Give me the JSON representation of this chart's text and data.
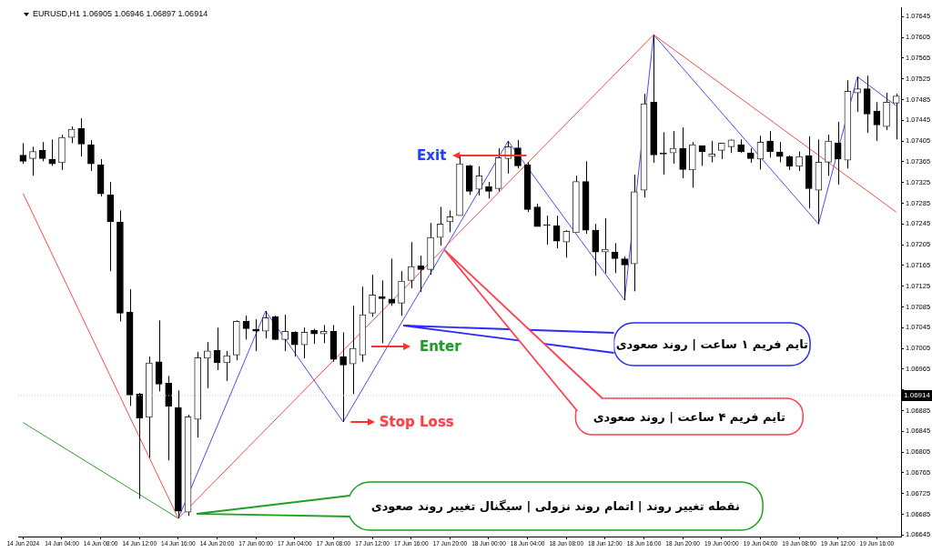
{
  "chart_data": {
    "type": "candlestick",
    "title": "EURUSD,H1  1.06905 1.06946 1.06897 1.06914",
    "categories": [
      "14 Jun 2024",
      null,
      null,
      null,
      "14 Jun 04:00",
      null,
      null,
      null,
      "14 Jun 08:00",
      null,
      null,
      null,
      "14 Jun 12:00",
      null,
      null,
      null,
      "14 Jun 16:00",
      null,
      null,
      null,
      "14 Jun 20:00",
      null,
      null,
      null,
      "17 Jun 00:00",
      null,
      null,
      null,
      "17 Jun 04:00",
      null,
      null,
      null,
      "17 Jun 08:00",
      null,
      null,
      null,
      "17 Jun 12:00",
      null,
      null,
      null,
      "17 Jun 16:00",
      null,
      null,
      null,
      "17 Jun 20:00",
      null,
      null,
      null,
      "18 Jun 00:00",
      null,
      null,
      null,
      "18 Jun 04:00",
      null,
      null,
      null,
      "18 Jun 08:00",
      null,
      null,
      null,
      "18 Jun 12:00",
      null,
      null,
      null,
      "18 Jun 16:00",
      null,
      null,
      null,
      "18 Jun 20:00",
      null,
      null,
      null,
      "19 Jun 00:00",
      null,
      null,
      null,
      "19 Jun 04:00",
      null,
      null,
      null,
      "19 Jun 08:00",
      null,
      null,
      null,
      "19 Jun 12:00",
      null,
      null,
      null,
      "19 Jun 16:00",
      null,
      null
    ],
    "ohlc": [
      [
        1.07378,
        1.07401,
        1.07361,
        1.07366
      ],
      [
        1.07371,
        1.07394,
        1.07338,
        1.07385
      ],
      [
        1.07387,
        1.07403,
        1.07366,
        1.07371
      ],
      [
        1.0737,
        1.07408,
        1.07357,
        1.07361
      ],
      [
        1.07363,
        1.07417,
        1.07349,
        1.07412
      ],
      [
        1.07412,
        1.07433,
        1.07401,
        1.07428
      ],
      [
        1.07429,
        1.07449,
        1.07375,
        1.07399
      ],
      [
        1.07398,
        1.07407,
        1.07347,
        1.07361
      ],
      [
        1.07359,
        1.0737,
        1.07298,
        1.07303
      ],
      [
        1.07301,
        1.07326,
        1.07154,
        1.07249
      ],
      [
        1.07249,
        1.07271,
        1.07057,
        1.07073
      ],
      [
        1.07075,
        1.07119,
        1.06894,
        1.06915
      ],
      [
        1.06917,
        1.06919,
        1.06715,
        1.0687
      ],
      [
        1.06872,
        1.06989,
        1.06794,
        1.06977
      ],
      [
        1.06979,
        1.07059,
        1.06922,
        1.06936
      ],
      [
        1.06938,
        1.06952,
        1.06789,
        1.06893
      ],
      [
        1.06891,
        1.06924,
        1.06677,
        1.06691
      ],
      [
        1.06689,
        1.06877,
        1.06682,
        1.06873
      ],
      [
        1.06868,
        1.06998,
        1.06833,
        1.06987
      ],
      [
        1.06986,
        1.07017,
        1.06928,
        1.07
      ],
      [
        1.07001,
        1.07045,
        1.06963,
        1.06977
      ],
      [
        1.06977,
        1.07,
        1.06942,
        1.06991
      ],
      [
        1.06992,
        1.07059,
        1.06982,
        1.07057
      ],
      [
        1.07057,
        1.07068,
        1.07022,
        1.07043
      ],
      [
        1.07042,
        1.07061,
        1.07,
        1.07038
      ],
      [
        1.07038,
        1.07077,
        1.07024,
        1.07064
      ],
      [
        1.07066,
        1.07068,
        1.07021,
        1.07022
      ],
      [
        1.07022,
        1.0707,
        1.07,
        1.07038
      ],
      [
        1.07036,
        1.07038,
        1.06989,
        1.07012
      ],
      [
        1.07012,
        1.07045,
        1.06986,
        1.07036
      ],
      [
        1.0704,
        1.07043,
        1.07014,
        1.07033
      ],
      [
        1.07033,
        1.0705,
        1.07015,
        1.07038
      ],
      [
        1.07038,
        1.0705,
        1.06979,
        1.06984
      ],
      [
        1.06989,
        1.07036,
        1.06863,
        1.06973
      ],
      [
        1.06975,
        1.07087,
        1.06917,
        1.07005
      ],
      [
        1.06992,
        1.07124,
        1.06979,
        1.0707
      ],
      [
        1.07073,
        1.07147,
        1.07066,
        1.07108
      ],
      [
        1.07105,
        1.07136,
        1.07015,
        1.07101
      ],
      [
        1.071,
        1.07178,
        1.07087,
        1.07092
      ],
      [
        1.07092,
        1.07154,
        1.07068,
        1.07135
      ],
      [
        1.07136,
        1.0721,
        1.07121,
        1.07163
      ],
      [
        1.07164,
        1.07184,
        1.07114,
        1.07157
      ],
      [
        1.07157,
        1.07247,
        1.07147,
        1.07219
      ],
      [
        1.07219,
        1.07278,
        1.07203,
        1.07245
      ],
      [
        1.07249,
        1.07271,
        1.07229,
        1.07259
      ],
      [
        1.07261,
        1.07375,
        1.07261,
        1.07361
      ],
      [
        1.07357,
        1.07359,
        1.07301,
        1.07308
      ],
      [
        1.07312,
        1.07356,
        1.073,
        1.07338
      ],
      [
        1.07317,
        1.07326,
        1.07294,
        1.07308
      ],
      [
        1.07313,
        1.07391,
        1.07308,
        1.07373
      ],
      [
        1.07371,
        1.07405,
        1.07342,
        1.07394
      ],
      [
        1.07392,
        1.07407,
        1.07352,
        1.07357
      ],
      [
        1.07359,
        1.07364,
        1.07268,
        1.07273
      ],
      [
        1.07278,
        1.07284,
        1.0724,
        1.0724
      ],
      [
        1.07243,
        1.07261,
        1.07205,
        1.07242
      ],
      [
        1.07242,
        1.07261,
        1.07198,
        1.07212
      ],
      [
        1.0721,
        1.07233,
        1.0718,
        1.07231
      ],
      [
        1.07228,
        1.07338,
        1.07228,
        1.07327
      ],
      [
        1.07327,
        1.07366,
        1.07226,
        1.07233
      ],
      [
        1.07233,
        1.07245,
        1.07145,
        1.07191
      ],
      [
        1.07191,
        1.07256,
        1.0715,
        1.07196
      ],
      [
        1.07191,
        1.07208,
        1.0715,
        1.07178
      ],
      [
        1.07178,
        1.07182,
        1.07098,
        1.07166
      ],
      [
        1.07168,
        1.0734,
        1.07115,
        1.07307
      ],
      [
        1.0731,
        1.07496,
        1.07296,
        1.07477
      ],
      [
        1.0748,
        1.0761,
        1.07363,
        1.07378
      ],
      [
        1.07382,
        1.07422,
        1.0734,
        1.0738
      ],
      [
        1.07382,
        1.07424,
        1.07361,
        1.07391
      ],
      [
        1.07391,
        1.07431,
        1.07333,
        1.0735
      ],
      [
        1.07349,
        1.07403,
        1.07315,
        1.07398
      ],
      [
        1.07396,
        1.07396,
        1.07357,
        1.07384
      ],
      [
        1.07375,
        1.07405,
        1.07364,
        1.0738
      ],
      [
        1.07387,
        1.07401,
        1.0737,
        1.07401
      ],
      [
        1.07394,
        1.07408,
        1.07382,
        1.07407
      ],
      [
        1.07398,
        1.07408,
        1.07382,
        1.07384
      ],
      [
        1.07382,
        1.07391,
        1.07363,
        1.07371
      ],
      [
        1.0737,
        1.07415,
        1.0735,
        1.07403
      ],
      [
        1.07405,
        1.07424,
        1.07373,
        1.07384
      ],
      [
        1.07384,
        1.07403,
        1.07364,
        1.07375
      ],
      [
        1.07375,
        1.07377,
        1.07349,
        1.07356
      ],
      [
        1.07356,
        1.07385,
        1.07347,
        1.07375
      ],
      [
        1.07377,
        1.07414,
        1.07275,
        1.07313
      ],
      [
        1.0731,
        1.07408,
        1.07245,
        1.07364
      ],
      [
        1.07364,
        1.07417,
        1.07338,
        1.07405
      ],
      [
        1.07401,
        1.07442,
        1.07321,
        1.0737
      ],
      [
        1.07368,
        1.07522,
        1.07352,
        1.07501
      ],
      [
        1.07498,
        1.07529,
        1.07461,
        1.07506
      ],
      [
        1.07506,
        1.07531,
        1.07421,
        1.07457
      ],
      [
        1.07463,
        1.0748,
        1.07405,
        1.07436
      ],
      [
        1.07433,
        1.07498,
        1.07426,
        1.0748
      ],
      [
        1.07478,
        1.07496,
        1.07408,
        1.07492
      ]
    ],
    "series": [
      {
        "type": "line",
        "color": "#ff4a4a",
        "values": [
          1.07304,
          null,
          null,
          null,
          null,
          null,
          null,
          null,
          null,
          null,
          null,
          null,
          null,
          null,
          null,
          null,
          1.06677,
          null,
          null,
          null,
          null,
          null,
          null,
          null,
          null,
          null,
          null,
          null,
          null,
          null,
          null,
          null,
          null,
          null,
          null,
          null,
          null,
          null,
          null,
          null,
          null,
          null,
          null,
          null,
          null,
          null,
          null,
          null,
          null,
          null,
          null,
          null,
          null,
          null,
          null,
          null,
          null,
          null,
          null,
          null,
          null,
          null,
          null,
          null,
          null,
          1.0761,
          null,
          null,
          null,
          null,
          null,
          null,
          null,
          null,
          null,
          null,
          null,
          null,
          null,
          null,
          null,
          null,
          null,
          null,
          null,
          null,
          null,
          null,
          null,
          null,
          1.07268
        ]
      },
      {
        "type": "line",
        "color": "#4a4aff",
        "values": [
          null,
          null,
          null,
          null,
          null,
          null,
          null,
          null,
          null,
          null,
          null,
          null,
          null,
          null,
          null,
          null,
          1.06677,
          null,
          null,
          null,
          null,
          null,
          null,
          null,
          null,
          1.07077,
          null,
          null,
          null,
          null,
          null,
          null,
          null,
          1.06863,
          null,
          null,
          null,
          null,
          null,
          null,
          null,
          null,
          null,
          null,
          null,
          null,
          null,
          null,
          null,
          null,
          1.07405,
          null,
          null,
          null,
          null,
          null,
          null,
          null,
          null,
          null,
          null,
          null,
          1.07098,
          null,
          null,
          1.0761,
          null,
          null,
          null,
          null,
          null,
          null,
          null,
          null,
          null,
          null,
          null,
          null,
          null,
          null,
          null,
          null,
          1.07245,
          null,
          null,
          null,
          1.07529,
          null,
          null,
          null,
          1.07473
        ]
      },
      {
        "type": "line",
        "color": "#2e9e2e",
        "values": [
          1.06862,
          null,
          null,
          null,
          null,
          null,
          null,
          null,
          null,
          null,
          null,
          null,
          null,
          null,
          null,
          null,
          1.06677,
          null,
          null,
          null,
          null,
          null,
          null,
          null,
          null,
          null,
          null,
          null,
          null,
          null,
          null,
          null,
          null,
          null,
          null,
          null,
          null,
          null,
          null,
          null,
          null,
          null,
          null,
          null,
          null,
          null,
          null,
          null,
          null,
          null,
          null,
          null,
          null,
          null,
          null,
          null,
          null,
          null,
          null,
          null,
          null,
          null,
          null,
          null,
          null,
          null,
          null,
          null,
          null,
          null,
          null,
          null,
          null,
          null,
          null,
          null,
          null,
          null,
          null,
          null,
          null,
          null,
          null,
          null,
          null,
          null,
          null,
          null,
          null,
          null,
          null
        ]
      }
    ],
    "marker": "none",
    "ylim": [
      1.06642,
      1.07663
    ],
    "yticks": [
      1.06645,
      1.06685,
      1.06725,
      1.06765,
      1.06805,
      1.06845,
      1.06885,
      {
        "value": 1.06925,
        "label": null
      },
      1.06965,
      1.07005,
      1.07045,
      1.07085,
      1.07125,
      1.07165,
      1.07205,
      1.07245,
      1.07285,
      1.07325,
      1.07365,
      1.07405,
      1.07445,
      1.07485,
      1.07525,
      1.07565,
      1.07605,
      1.07645
    ],
    "ref_lines": [
      {
        "axis": "y",
        "value": 1.06914,
        "label": "1.06914",
        "color": "#c8c8d0",
        "line_style": "dotted"
      }
    ],
    "annotations": [
      "Exit",
      "Enter",
      "Stop Loss",
      "تایم فریم ۱ ساعت | روند صعودی",
      "تایم فریم ۴ ساعت | روند صعودی",
      "نقطه تغییر روند | اتمام روند نزولی | سیگنال تغییر روند صعودی"
    ]
  }
}
